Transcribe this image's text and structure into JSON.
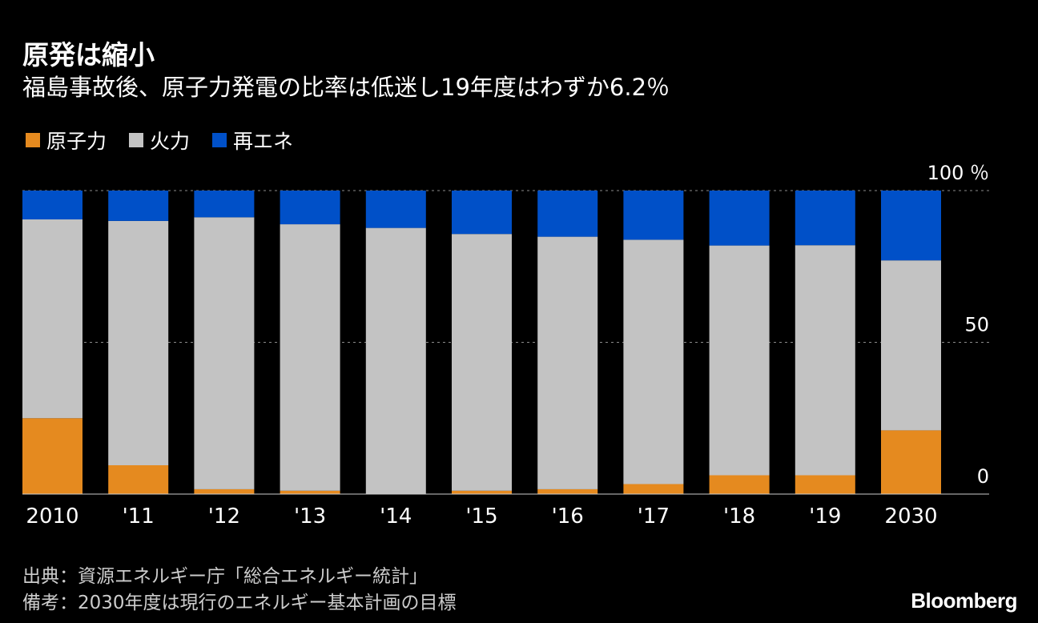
{
  "title": "原発は縮小",
  "subtitle": "福島事故後、原子力発電の比率は低迷し19年度はわずか6.2％",
  "legend": [
    {
      "label": "原子力",
      "color": "#e58a1f"
    },
    {
      "label": "火力",
      "color": "#c3c3c3"
    },
    {
      "label": "再エネ",
      "color": "#0050c8"
    }
  ],
  "footnotes": {
    "source": "出典：資源エネルギー庁「総合エネルギー統計」",
    "note": "備考：2030年度は現行のエネルギー基本計画の目標"
  },
  "brand": "Bloomberg",
  "chart_data": {
    "type": "bar",
    "stacked": true,
    "categories": [
      "2010",
      "'11",
      "'12",
      "'13",
      "'14",
      "'15",
      "'16",
      "'17",
      "'18",
      "'19",
      "2030"
    ],
    "series": [
      {
        "name": "原子力",
        "values": [
          25,
          9.5,
          1.6,
          1.1,
          0,
          1.1,
          1.6,
          3.3,
          6.2,
          6.2,
          21
        ]
      },
      {
        "name": "火力",
        "values": [
          65.5,
          80.5,
          89.6,
          87.8,
          87.7,
          84.6,
          83.2,
          80.5,
          75.7,
          75.8,
          56
        ]
      },
      {
        "name": "再エネ",
        "values": [
          9.5,
          10,
          8.8,
          11.1,
          12.3,
          14.3,
          15.2,
          16.2,
          18.1,
          18,
          23
        ]
      }
    ],
    "ylim": [
      0,
      100
    ],
    "yticks": [
      {
        "value": 0,
        "label": "0"
      },
      {
        "value": 50,
        "label": "50"
      },
      {
        "value": 100,
        "label": "100 ％"
      }
    ],
    "gridlines": "dashed"
  }
}
